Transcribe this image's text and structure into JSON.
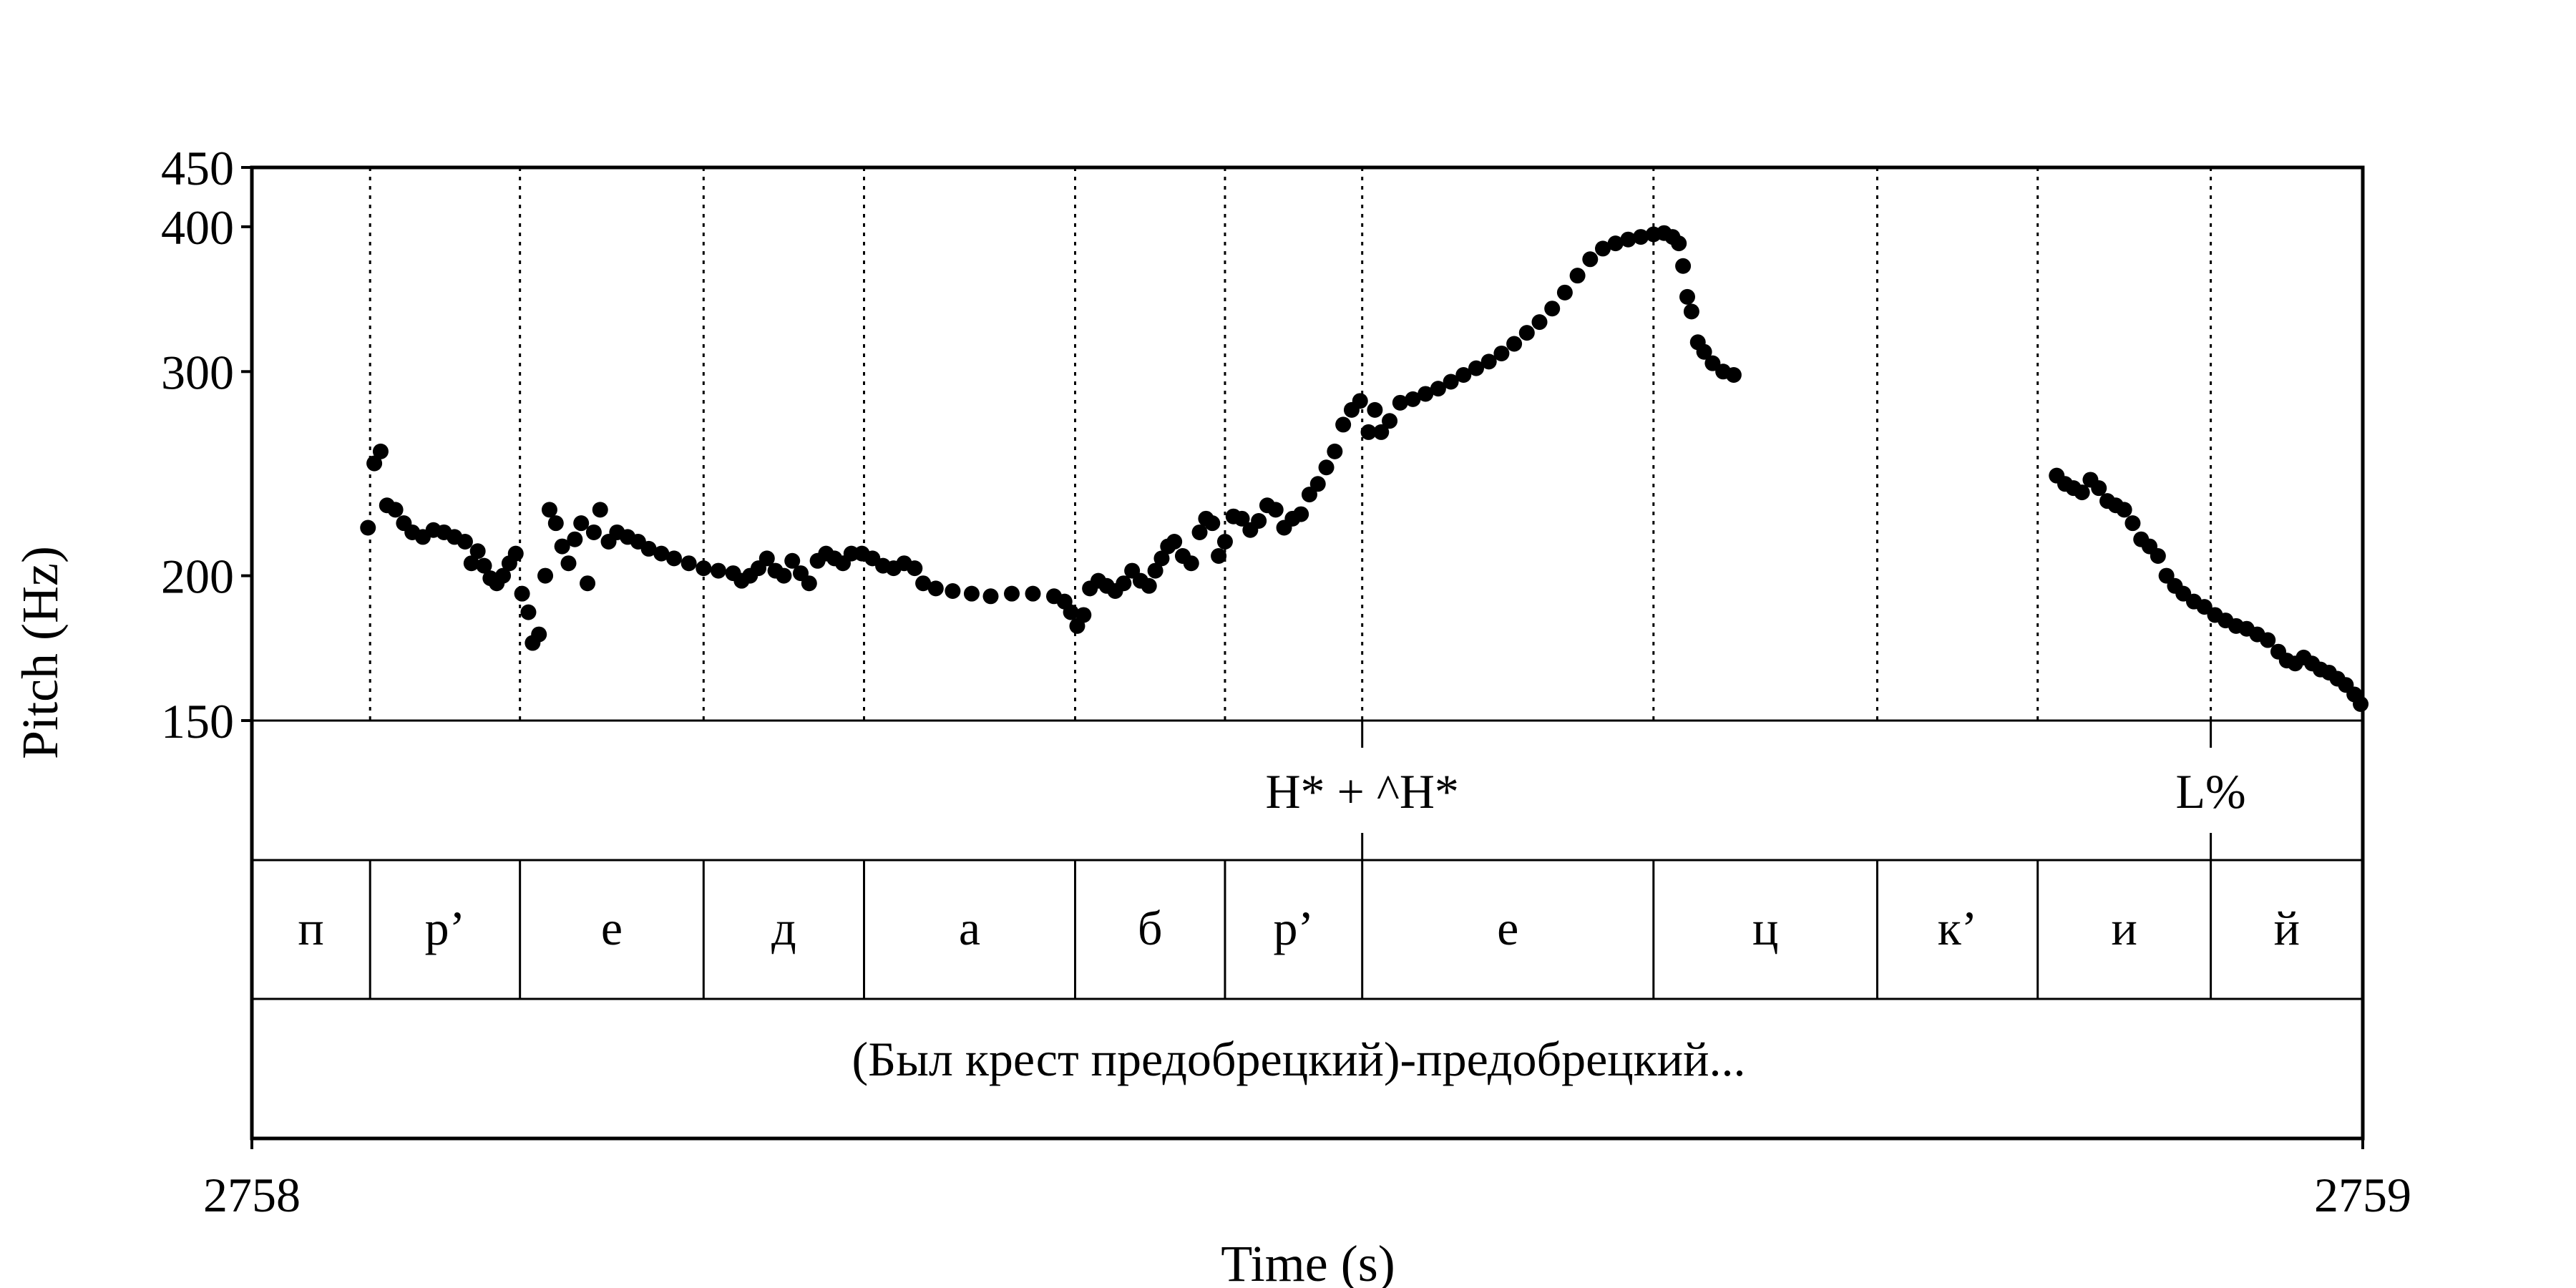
{
  "chart_data": {
    "type": "scatter",
    "title": "",
    "xlabel": "Time (s)",
    "ylabel": "Pitch (Hz)",
    "xlim": [
      2758,
      2759
    ],
    "ylim": [
      150,
      450
    ],
    "x_ticks": [
      "2758",
      "2759"
    ],
    "y_ticks": [
      {
        "value": 450,
        "label": "450"
      },
      {
        "value": 400,
        "label": "400"
      },
      {
        "value": 300,
        "label": "300"
      },
      {
        "value": 200,
        "label": "200"
      },
      {
        "value": 150,
        "label": "150"
      }
    ],
    "grid": false,
    "segment_boundaries": [
      2758.056,
      2758.127,
      2758.214,
      2758.29,
      2758.39,
      2758.461,
      2758.526,
      2758.664,
      2758.77,
      2758.846,
      2758.928
    ],
    "series": [
      {
        "points": [
          [
            2758.055,
            220
          ],
          [
            2758.058,
            250
          ],
          [
            2758.061,
            256
          ],
          [
            2758.064,
            230
          ],
          [
            2758.068,
            228
          ],
          [
            2758.072,
            222
          ],
          [
            2758.076,
            218
          ],
          [
            2758.081,
            216
          ],
          [
            2758.086,
            219
          ],
          [
            2758.091,
            218
          ],
          [
            2758.096,
            216
          ],
          [
            2758.101,
            214
          ],
          [
            2758.104,
            205
          ],
          [
            2758.107,
            210
          ],
          [
            2758.11,
            204
          ],
          [
            2758.113,
            199
          ],
          [
            2758.116,
            197
          ],
          [
            2758.119,
            200
          ],
          [
            2758.122,
            205
          ],
          [
            2758.125,
            209
          ],
          [
            2758.128,
            193
          ],
          [
            2758.131,
            186
          ],
          [
            2758.133,
            175
          ],
          [
            2758.136,
            178
          ],
          [
            2758.139,
            200
          ],
          [
            2758.141,
            228
          ],
          [
            2758.144,
            222
          ],
          [
            2758.147,
            212
          ],
          [
            2758.15,
            205
          ],
          [
            2758.153,
            215
          ],
          [
            2758.156,
            222
          ],
          [
            2758.159,
            197
          ],
          [
            2758.162,
            218
          ],
          [
            2758.165,
            228
          ],
          [
            2758.169,
            214
          ],
          [
            2758.173,
            218
          ],
          [
            2758.178,
            216
          ],
          [
            2758.183,
            214
          ],
          [
            2758.188,
            211
          ],
          [
            2758.194,
            209
          ],
          [
            2758.2,
            207
          ],
          [
            2758.207,
            205
          ],
          [
            2758.214,
            203
          ],
          [
            2758.221,
            202
          ],
          [
            2758.228,
            201
          ],
          [
            2758.232,
            198
          ],
          [
            2758.236,
            200
          ],
          [
            2758.24,
            203
          ],
          [
            2758.244,
            207
          ],
          [
            2758.248,
            202
          ],
          [
            2758.252,
            200
          ],
          [
            2758.256,
            206
          ],
          [
            2758.26,
            201
          ],
          [
            2758.264,
            197
          ],
          [
            2758.268,
            206
          ],
          [
            2758.272,
            209
          ],
          [
            2758.276,
            207
          ],
          [
            2758.28,
            205
          ],
          [
            2758.284,
            209
          ],
          [
            2758.289,
            209
          ],
          [
            2758.294,
            207
          ],
          [
            2758.299,
            204
          ],
          [
            2758.304,
            203
          ],
          [
            2758.309,
            205
          ],
          [
            2758.314,
            203
          ],
          [
            2758.318,
            197
          ],
          [
            2758.324,
            195
          ],
          [
            2758.332,
            194
          ],
          [
            2758.341,
            193
          ],
          [
            2758.35,
            192
          ],
          [
            2758.36,
            193
          ],
          [
            2758.37,
            193
          ],
          [
            2758.38,
            192
          ],
          [
            2758.385,
            190
          ],
          [
            2758.388,
            186
          ],
          [
            2758.391,
            181
          ],
          [
            2758.394,
            185
          ],
          [
            2758.397,
            195
          ],
          [
            2758.401,
            198
          ],
          [
            2758.405,
            196
          ],
          [
            2758.409,
            194
          ],
          [
            2758.413,
            197
          ],
          [
            2758.417,
            202
          ],
          [
            2758.421,
            198
          ],
          [
            2758.425,
            196
          ],
          [
            2758.428,
            202
          ],
          [
            2758.431,
            207
          ],
          [
            2758.434,
            212
          ],
          [
            2758.437,
            214
          ],
          [
            2758.441,
            208
          ],
          [
            2758.445,
            205
          ],
          [
            2758.449,
            218
          ],
          [
            2758.452,
            224
          ],
          [
            2758.455,
            222
          ],
          [
            2758.458,
            208
          ],
          [
            2758.461,
            214
          ],
          [
            2758.465,
            225
          ],
          [
            2758.469,
            224
          ],
          [
            2758.473,
            219
          ],
          [
            2758.477,
            223
          ],
          [
            2758.481,
            230
          ],
          [
            2758.485,
            228
          ],
          [
            2758.489,
            220
          ],
          [
            2758.493,
            224
          ],
          [
            2758.497,
            226
          ],
          [
            2758.501,
            235
          ],
          [
            2758.505,
            240
          ],
          [
            2758.509,
            248
          ],
          [
            2758.513,
            256
          ],
          [
            2758.517,
            270
          ],
          [
            2758.521,
            278
          ],
          [
            2758.525,
            283
          ],
          [
            2758.529,
            266
          ],
          [
            2758.532,
            278
          ],
          [
            2758.535,
            266
          ],
          [
            2758.539,
            272
          ],
          [
            2758.544,
            282
          ],
          [
            2758.55,
            284
          ],
          [
            2758.556,
            287
          ],
          [
            2758.562,
            290
          ],
          [
            2758.568,
            294
          ],
          [
            2758.574,
            298
          ],
          [
            2758.58,
            302
          ],
          [
            2758.586,
            306
          ],
          [
            2758.592,
            311
          ],
          [
            2758.598,
            317
          ],
          [
            2758.604,
            324
          ],
          [
            2758.61,
            331
          ],
          [
            2758.616,
            340
          ],
          [
            2758.622,
            351
          ],
          [
            2758.628,
            363
          ],
          [
            2758.634,
            375
          ],
          [
            2758.64,
            383
          ],
          [
            2758.646,
            387
          ],
          [
            2758.652,
            390
          ],
          [
            2758.658,
            392
          ],
          [
            2758.664,
            394
          ],
          [
            2758.669,
            395
          ],
          [
            2758.673,
            392
          ],
          [
            2758.676,
            387
          ],
          [
            2758.678,
            370
          ],
          [
            2758.68,
            348
          ],
          [
            2758.682,
            338
          ],
          [
            2758.685,
            318
          ],
          [
            2758.688,
            312
          ],
          [
            2758.692,
            305
          ],
          [
            2758.697,
            300
          ],
          [
            2758.702,
            298
          ],
          [
            2758.855,
            244
          ],
          [
            2758.859,
            240
          ],
          [
            2758.863,
            238
          ],
          [
            2758.867,
            236
          ],
          [
            2758.871,
            242
          ],
          [
            2758.875,
            238
          ],
          [
            2758.879,
            232
          ],
          [
            2758.883,
            230
          ],
          [
            2758.887,
            228
          ],
          [
            2758.891,
            222
          ],
          [
            2758.895,
            215
          ],
          [
            2758.899,
            212
          ],
          [
            2758.903,
            208
          ],
          [
            2758.907,
            200
          ],
          [
            2758.911,
            196
          ],
          [
            2758.915,
            193
          ],
          [
            2758.92,
            190
          ],
          [
            2758.925,
            188
          ],
          [
            2758.93,
            185
          ],
          [
            2758.935,
            183
          ],
          [
            2758.94,
            181
          ],
          [
            2758.945,
            180
          ],
          [
            2758.95,
            178
          ],
          [
            2758.955,
            176
          ],
          [
            2758.96,
            172
          ],
          [
            2758.964,
            169
          ],
          [
            2758.968,
            168
          ],
          [
            2758.972,
            170
          ],
          [
            2758.976,
            168
          ],
          [
            2758.98,
            166
          ],
          [
            2758.984,
            165
          ],
          [
            2758.988,
            163
          ],
          [
            2758.992,
            161
          ],
          [
            2758.996,
            158
          ],
          [
            2758.999,
            155
          ]
        ]
      }
    ]
  },
  "tiers": {
    "tones": {
      "labels": [
        "H* + ^H*",
        "L%"
      ],
      "boundaries": [
        2758.526,
        2758.928
      ]
    },
    "segments": {
      "labels": [
        "п",
        "р’",
        "е",
        "д",
        "а",
        "б",
        "р’",
        "е",
        "ц",
        "к’",
        "и",
        "й"
      ]
    },
    "phrase": {
      "text": "(Был крест предобрецкий)-предобрецкий..."
    }
  }
}
